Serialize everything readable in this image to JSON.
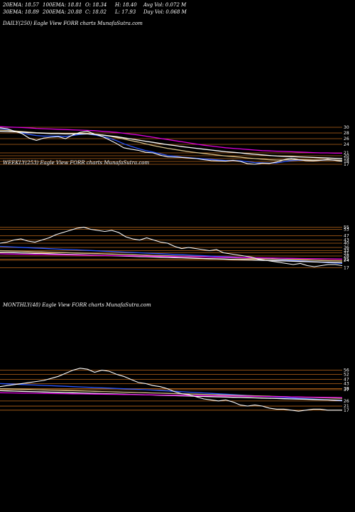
{
  "header": {
    "row1": [
      "20EMA: 18.57",
      "100EMA: 18.81",
      "O: 18.34",
      "H: 18.40",
      "Avg Vol: 0.072  M"
    ],
    "row2": [
      "30EMA: 18.89",
      "200EMA: 20.88",
      "C: 18.02",
      "L: 17.93",
      "Day Vol: 0.068  M"
    ]
  },
  "chart_data": [
    {
      "type": "line",
      "title": "DAILY(250) Eagle   View  FORR charts MunafaSutra.com",
      "y_ticks": [
        "30",
        "28",
        "26",
        "24",
        "21",
        "20",
        "19",
        "18",
        "17"
      ],
      "ylim": [
        16,
        31
      ],
      "series": [
        {
          "color": "#ffffff",
          "y": [
            29.8,
            29.5,
            28.6,
            27.8,
            26.2,
            25.4,
            26.2,
            26.5,
            26.7,
            26.0,
            27.3,
            28.2,
            28.6,
            27.6,
            26.8,
            25.6,
            24.3,
            22.8,
            22.3,
            21.9,
            21.2,
            21.0,
            20.2,
            19.6,
            19.5,
            19.4,
            19.2,
            19.0,
            18.6,
            18.3,
            18.2,
            18.1,
            18.4,
            18.0,
            17.2,
            17.0,
            17.4,
            17.3,
            17.8,
            18.6,
            19.1,
            18.6,
            18.3,
            18.2,
            18.4,
            18.7,
            18.4,
            18.0
          ]
        },
        {
          "color": "#2a56ff",
          "y": [
            29.6,
            29.3,
            28.7,
            28.1,
            27.5,
            27.1,
            26.9,
            26.9,
            26.9,
            26.8,
            27.1,
            27.5,
            27.7,
            27.3,
            26.8,
            26.2,
            25.3,
            24.2,
            23.3,
            22.5,
            21.8,
            21.3,
            20.7,
            20.1,
            19.8,
            19.5,
            19.3,
            19.1,
            18.9,
            18.7,
            18.5,
            18.3,
            18.3,
            18.2,
            17.9,
            17.6,
            17.5,
            17.4,
            17.5,
            17.9,
            18.3,
            18.4,
            18.4,
            18.3,
            18.4,
            18.5,
            18.5,
            18.4
          ]
        },
        {
          "color": "#d6c08a",
          "y": [
            29.0,
            28.9,
            28.7,
            28.5,
            28.3,
            28.1,
            28.0,
            27.9,
            27.9,
            27.8,
            27.8,
            27.8,
            27.8,
            27.6,
            27.3,
            26.9,
            26.4,
            25.9,
            25.3,
            24.8,
            24.2,
            23.6,
            23.1,
            22.6,
            22.2,
            21.8,
            21.4,
            21.1,
            20.8,
            20.5,
            20.2,
            19.9,
            19.7,
            19.5,
            19.2,
            19.0,
            18.8,
            18.6,
            18.5,
            18.5,
            18.6,
            18.6,
            18.6,
            18.5,
            18.5,
            18.5,
            18.5,
            18.4
          ]
        },
        {
          "color": "#ffffff",
          "y": [
            28.6,
            28.5,
            28.4,
            28.3,
            28.1,
            28.0,
            27.9,
            27.8,
            27.8,
            27.7,
            27.7,
            27.7,
            27.7,
            27.5,
            27.3,
            27.0,
            26.7,
            26.3,
            25.9,
            25.5,
            25.1,
            24.7,
            24.3,
            23.9,
            23.6,
            23.2,
            22.9,
            22.6,
            22.3,
            22.0,
            21.7,
            21.4,
            21.2,
            21.0,
            20.7,
            20.5,
            20.3,
            20.1,
            19.9,
            19.8,
            19.7,
            19.6,
            19.5,
            19.4,
            19.3,
            19.2,
            19.1,
            19.0
          ]
        },
        {
          "color": "#e000e0",
          "y": [
            30.2,
            30.1,
            30.0,
            29.9,
            29.8,
            29.6,
            29.5,
            29.4,
            29.3,
            29.2,
            29.1,
            29.0,
            28.9,
            28.8,
            28.6,
            28.4,
            28.2,
            27.9,
            27.6,
            27.3,
            26.9,
            26.5,
            26.1,
            25.7,
            25.3,
            24.9,
            24.5,
            24.1,
            23.7,
            23.4,
            23.1,
            22.8,
            22.6,
            22.4,
            22.2,
            22.0,
            21.8,
            21.7,
            21.6,
            21.5,
            21.4,
            21.3,
            21.2,
            21.1,
            21.0,
            21.0,
            20.9,
            20.9
          ]
        }
      ]
    },
    {
      "type": "line",
      "title": "WEEKLY(253) Eagle   View  FORR charts MunafaSutra.com",
      "y_ticks": [
        "55",
        "53",
        "47",
        "43",
        "40",
        "36",
        "33",
        "31",
        "28",
        "25",
        "24",
        "17"
      ],
      "ylim": [
        14,
        58
      ],
      "series": [
        {
          "color": "#ffffff",
          "y": [
            40,
            41,
            43,
            44,
            42,
            41,
            43,
            45,
            48,
            50,
            52,
            54,
            55,
            53,
            52,
            51,
            52,
            50,
            46,
            44,
            43,
            45,
            43,
            41,
            40,
            37,
            35,
            36,
            35,
            34,
            33,
            34,
            31,
            30,
            29,
            28,
            27,
            25,
            24,
            23,
            22,
            21,
            20,
            21,
            19,
            18,
            19,
            20,
            20,
            19
          ]
        },
        {
          "color": "#2a56ff",
          "y": [
            37,
            36.7,
            36.4,
            36.1,
            35.8,
            35.5,
            35.2,
            34.9,
            34.6,
            34.3,
            34.0,
            33.7,
            33.4,
            33.1,
            32.8,
            32.5,
            32.2,
            31.9,
            31.6,
            31.3,
            31.0,
            30.7,
            30.4,
            30.1,
            29.8,
            29.5,
            29.2,
            28.9,
            28.6,
            28.3,
            28.0,
            27.7,
            27.4,
            27.1,
            26.8,
            26.5,
            26.2,
            25.8,
            25.4,
            25.0,
            24.6,
            24.2,
            23.8,
            23.4,
            23.0,
            22.6,
            22.2,
            21.8,
            21.4,
            21.0
          ]
        },
        {
          "color": "#d6c08a",
          "y": [
            33,
            32.8,
            32.6,
            32.4,
            32.2,
            32.0,
            31.8,
            31.6,
            31.4,
            31.2,
            31.0,
            30.8,
            30.6,
            30.4,
            30.2,
            30.0,
            29.8,
            29.6,
            29.4,
            29.2,
            29.0,
            28.8,
            28.6,
            28.4,
            28.2,
            28.0,
            27.8,
            27.6,
            27.4,
            27.2,
            27.0,
            26.8,
            26.6,
            26.4,
            26.2,
            26.0,
            25.8,
            25.6,
            25.4,
            25.2,
            25.0,
            24.8,
            24.6,
            24.4,
            24.2,
            24.0,
            23.8,
            23.6,
            23.4,
            23.2
          ]
        },
        {
          "color": "#ffffff",
          "y": [
            31.5,
            31.3,
            31.1,
            30.9,
            30.7,
            30.5,
            30.3,
            30.1,
            29.9,
            29.7,
            29.5,
            29.3,
            29.1,
            28.9,
            28.7,
            28.5,
            28.3,
            28.1,
            27.9,
            27.7,
            27.5,
            27.3,
            27.1,
            26.9,
            26.7,
            26.5,
            26.3,
            26.1,
            25.9,
            25.7,
            25.5,
            25.3,
            25.1,
            24.9,
            24.7,
            24.5,
            24.3,
            24.1,
            23.9,
            23.7,
            23.5,
            23.3,
            23.1,
            22.9,
            22.7,
            22.5,
            22.3,
            22.1,
            21.9,
            21.7
          ]
        },
        {
          "color": "#e000e0",
          "y": [
            30,
            29.9,
            29.8,
            29.7,
            29.6,
            29.5,
            29.4,
            29.3,
            29.2,
            29.1,
            29.0,
            28.9,
            28.8,
            28.7,
            28.6,
            28.5,
            28.4,
            28.3,
            28.2,
            28.1,
            28.0,
            27.9,
            27.8,
            27.7,
            27.6,
            27.5,
            27.4,
            27.3,
            27.2,
            27.1,
            27.0,
            26.9,
            26.8,
            26.7,
            26.6,
            26.5,
            26.4,
            26.3,
            26.2,
            26.1,
            26.0,
            25.9,
            25.8,
            25.7,
            25.6,
            25.5,
            25.4,
            25.3,
            25.2,
            25.1
          ]
        }
      ]
    },
    {
      "type": "line",
      "title": "MONTHLY(48) Eagle   View  FORR charts MunafaSutra.com",
      "y_ticks": [
        "56",
        "52",
        "47",
        "43",
        "38",
        "37",
        "26",
        "21",
        "17"
      ],
      "ylim": [
        12,
        62
      ],
      "series": [
        {
          "color": "#ffffff",
          "y": [
            40,
            41,
            42,
            43,
            44,
            45,
            46,
            48,
            50,
            53,
            56,
            58,
            57,
            54,
            56,
            55,
            52,
            50,
            47,
            44,
            43,
            41,
            40,
            38,
            35,
            33,
            32,
            30,
            28,
            27,
            26,
            27,
            25,
            22,
            21,
            22,
            21,
            19,
            18,
            18,
            17,
            16,
            17,
            18,
            18,
            17,
            17,
            17
          ]
        },
        {
          "color": "#2a56ff",
          "y": [
            43,
            42.7,
            42.4,
            42.1,
            41.8,
            41.5,
            41.2,
            40.9,
            40.6,
            40.3,
            40.0,
            39.7,
            39.4,
            39.1,
            38.8,
            38.5,
            38.2,
            37.9,
            37.6,
            37.3,
            37.0,
            36.6,
            36.2,
            35.8,
            35.4,
            35.0,
            34.6,
            34.2,
            33.8,
            33.4,
            33.0,
            32.6,
            32.2,
            31.8,
            31.4,
            31.0,
            30.6,
            30.2,
            29.8,
            29.4,
            29.0,
            28.6,
            28.2,
            27.8,
            27.4,
            27.0,
            26.6,
            26.2
          ]
        },
        {
          "color": "#d6c08a",
          "y": [
            38,
            37.8,
            37.6,
            37.4,
            37.2,
            37.0,
            36.8,
            36.6,
            36.4,
            36.2,
            36.0,
            35.8,
            35.6,
            35.4,
            35.2,
            35.0,
            34.8,
            34.6,
            34.4,
            34.2,
            34.0,
            33.8,
            33.6,
            33.4,
            33.2,
            33.0,
            32.8,
            32.6,
            32.4,
            32.2,
            32.0,
            31.8,
            31.6,
            31.4,
            31.2,
            31.0,
            30.8,
            30.6,
            30.4,
            30.2,
            30.0,
            29.8,
            29.6,
            29.4,
            29.2,
            29.0,
            28.8,
            28.6
          ]
        },
        {
          "color": "#ffffff",
          "y": [
            36,
            35.8,
            35.6,
            35.4,
            35.2,
            35.0,
            34.8,
            34.6,
            34.4,
            34.2,
            34.0,
            33.8,
            33.6,
            33.4,
            33.2,
            33.0,
            32.8,
            32.6,
            32.4,
            32.2,
            32.0,
            31.8,
            31.6,
            31.4,
            31.2,
            31.0,
            30.8,
            30.6,
            30.4,
            30.2,
            30.0,
            29.8,
            29.6,
            29.4,
            29.2,
            29.0,
            28.8,
            28.6,
            28.4,
            28.2,
            28.0,
            27.8,
            27.6,
            27.4,
            27.2,
            27.0,
            26.8,
            26.6
          ]
        },
        {
          "color": "#e000e0",
          "y": [
            34,
            33.9,
            33.8,
            33.7,
            33.6,
            33.5,
            33.4,
            33.3,
            33.2,
            33.1,
            33.0,
            32.9,
            32.8,
            32.7,
            32.6,
            32.5,
            32.4,
            32.3,
            32.2,
            32.1,
            32.0,
            31.9,
            31.8,
            31.7,
            31.6,
            31.5,
            31.4,
            31.3,
            31.2,
            31.1,
            31.0,
            30.9,
            30.8,
            30.7,
            30.6,
            30.5,
            30.4,
            30.3,
            30.2,
            30.1,
            30.0,
            29.9,
            29.8,
            29.7,
            29.6,
            29.5,
            29.4,
            29.3
          ]
        }
      ]
    }
  ]
}
